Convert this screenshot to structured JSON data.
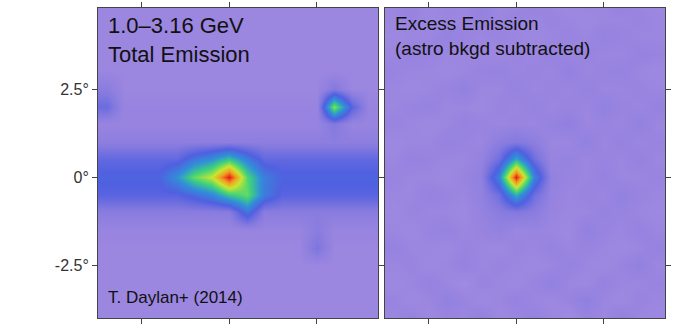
{
  "chart_data": [
    {
      "type": "heatmap",
      "title": [
        "1.0–3.16 GeV",
        "Total Emission"
      ],
      "annotations": [
        "T. Daylan+ (2014)"
      ],
      "x": [
        -3.5,
        -3.0,
        -2.5,
        -2.0,
        -1.5,
        -1.0,
        -0.5,
        0,
        0.5,
        1.0,
        1.5,
        2.0,
        2.5,
        3.0,
        3.5,
        4.0
      ],
      "y": [
        -4.0,
        -3.5,
        -3.0,
        -2.5,
        -2.0,
        -1.5,
        -1.0,
        -0.5,
        0,
        0.5,
        1.0,
        1.5,
        2.0,
        2.5,
        3.0,
        3.5,
        4.0,
        4.5,
        5.0
      ],
      "cells": [
        [
          0.12,
          0.12,
          0.12,
          0.12,
          0.12,
          0.12,
          0.12,
          0.12,
          0.12,
          0.12,
          0.12,
          0.12,
          0.12,
          0.12,
          0.12,
          0.12
        ],
        [
          0.12,
          0.12,
          0.12,
          0.12,
          0.12,
          0.12,
          0.12,
          0.12,
          0.12,
          0.12,
          0.12,
          0.12,
          0.12,
          0.12,
          0.12,
          0.12
        ],
        [
          0.12,
          0.12,
          0.12,
          0.12,
          0.12,
          0.12,
          0.12,
          0.12,
          0.12,
          0.12,
          0.12,
          0.12,
          0.12,
          0.12,
          0.12,
          0.12
        ],
        [
          0.12,
          0.12,
          0.12,
          0.12,
          0.12,
          0.12,
          0.12,
          0.12,
          0.12,
          0.12,
          0.12,
          0.12,
          0.12,
          0.12,
          0.12,
          0.12
        ],
        [
          0.12,
          0.12,
          0.12,
          0.12,
          0.12,
          0.12,
          0.12,
          0.12,
          0.12,
          0.12,
          0.12,
          0.12,
          0.22,
          0.12,
          0.12,
          0.12
        ],
        [
          0.13,
          0.13,
          0.13,
          0.13,
          0.13,
          0.13,
          0.13,
          0.13,
          0.13,
          0.13,
          0.13,
          0.13,
          0.18,
          0.13,
          0.13,
          0.13
        ],
        [
          0.18,
          0.18,
          0.18,
          0.18,
          0.18,
          0.18,
          0.18,
          0.18,
          0.38,
          0.18,
          0.18,
          0.18,
          0.18,
          0.18,
          0.18,
          0.18
        ],
        [
          0.3,
          0.3,
          0.3,
          0.3,
          0.3,
          0.35,
          0.42,
          0.55,
          0.62,
          0.4,
          0.3,
          0.3,
          0.3,
          0.3,
          0.3,
          0.3
        ],
        [
          0.33,
          0.33,
          0.33,
          0.33,
          0.45,
          0.62,
          0.72,
          1.0,
          0.6,
          0.4,
          0.33,
          0.33,
          0.33,
          0.33,
          0.33,
          0.33
        ],
        [
          0.28,
          0.28,
          0.28,
          0.28,
          0.28,
          0.38,
          0.45,
          0.55,
          0.4,
          0.28,
          0.28,
          0.28,
          0.28,
          0.28,
          0.28,
          0.28
        ],
        [
          0.17,
          0.17,
          0.17,
          0.17,
          0.17,
          0.17,
          0.17,
          0.17,
          0.17,
          0.17,
          0.17,
          0.17,
          0.17,
          0.17,
          0.17,
          0.17
        ],
        [
          0.13,
          0.13,
          0.13,
          0.13,
          0.13,
          0.13,
          0.13,
          0.13,
          0.13,
          0.13,
          0.13,
          0.13,
          0.13,
          0.2,
          0.13,
          0.13
        ],
        [
          0.26,
          0.13,
          0.13,
          0.13,
          0.13,
          0.13,
          0.13,
          0.13,
          0.13,
          0.13,
          0.13,
          0.13,
          0.13,
          0.66,
          0.3,
          0.13
        ],
        [
          0.18,
          0.12,
          0.12,
          0.12,
          0.12,
          0.12,
          0.12,
          0.12,
          0.12,
          0.12,
          0.12,
          0.12,
          0.12,
          0.2,
          0.12,
          0.12
        ],
        [
          0.12,
          0.12,
          0.12,
          0.12,
          0.12,
          0.12,
          0.12,
          0.12,
          0.12,
          0.12,
          0.12,
          0.12,
          0.12,
          0.12,
          0.12,
          0.12
        ],
        [
          0.12,
          0.12,
          0.12,
          0.12,
          0.12,
          0.12,
          0.12,
          0.12,
          0.12,
          0.12,
          0.12,
          0.12,
          0.12,
          0.12,
          0.12,
          0.12
        ],
        [
          0.12,
          0.12,
          0.12,
          0.12,
          0.12,
          0.12,
          0.12,
          0.12,
          0.12,
          0.12,
          0.12,
          0.12,
          0.12,
          0.12,
          0.12,
          0.12
        ],
        [
          0.12,
          0.12,
          0.12,
          0.12,
          0.12,
          0.12,
          0.12,
          0.12,
          0.12,
          0.12,
          0.12,
          0.12,
          0.12,
          0.12,
          0.12,
          0.12
        ],
        [
          0.12,
          0.12,
          0.12,
          0.12,
          0.12,
          0.12,
          0.12,
          0.12,
          0.12,
          0.12,
          0.12,
          0.12,
          0.12,
          0.12,
          0.12,
          0.12
        ]
      ],
      "zlim": [
        0,
        1
      ],
      "xlim": [
        -3.75,
        4.25
      ],
      "ylim": [
        -4.0,
        4.8
      ],
      "xticks": [
        -2.5,
        0,
        2.5
      ],
      "yticks": [
        {
          "value": -2.5,
          "label": "-2.5°"
        },
        {
          "value": 0,
          "label": "0°"
        },
        {
          "value": 2.5,
          "label": "2.5°"
        }
      ],
      "tick_labels": "y"
    },
    {
      "type": "heatmap",
      "title": [
        "Excess Emission",
        "(astro bkgd subtracted)"
      ],
      "x": [
        -3.5,
        -3.0,
        -2.5,
        -2.0,
        -1.5,
        -1.0,
        -0.5,
        0,
        0.5,
        1.0,
        1.5,
        2.0,
        2.5,
        3.0,
        3.5,
        4.0
      ],
      "y": [
        -4.0,
        -3.5,
        -3.0,
        -2.5,
        -2.0,
        -1.5,
        -1.0,
        -0.5,
        0,
        0.5,
        1.0,
        1.5,
        2.0,
        2.5,
        3.0,
        3.5,
        4.0,
        4.5,
        5.0
      ],
      "cells": [
        [
          0.12,
          0.14,
          0.11,
          0.13,
          0.12,
          0.15,
          0.11,
          0.12,
          0.14,
          0.12,
          0.1,
          0.13,
          0.12,
          0.15,
          0.12,
          0.11
        ],
        [
          0.13,
          0.11,
          0.12,
          0.15,
          0.13,
          0.11,
          0.12,
          0.14,
          0.12,
          0.11,
          0.13,
          0.16,
          0.12,
          0.11,
          0.13,
          0.12
        ],
        [
          0.11,
          0.12,
          0.14,
          0.12,
          0.1,
          0.13,
          0.12,
          0.11,
          0.13,
          0.15,
          0.12,
          0.11,
          0.14,
          0.12,
          0.12,
          0.13
        ],
        [
          0.12,
          0.13,
          0.11,
          0.12,
          0.14,
          0.12,
          0.13,
          0.12,
          0.11,
          0.12,
          0.14,
          0.12,
          0.11,
          0.13,
          0.15,
          0.12
        ],
        [
          0.14,
          0.12,
          0.12,
          0.11,
          0.13,
          0.12,
          0.11,
          0.13,
          0.12,
          0.14,
          0.12,
          0.13,
          0.12,
          0.11,
          0.12,
          0.14
        ],
        [
          0.12,
          0.11,
          0.13,
          0.14,
          0.12,
          0.13,
          0.15,
          0.12,
          0.13,
          0.12,
          0.11,
          0.15,
          0.13,
          0.12,
          0.14,
          0.12
        ],
        [
          0.11,
          0.13,
          0.12,
          0.12,
          0.11,
          0.14,
          0.18,
          0.2,
          0.18,
          0.13,
          0.12,
          0.12,
          0.14,
          0.13,
          0.12,
          0.11
        ],
        [
          0.12,
          0.12,
          0.14,
          0.13,
          0.12,
          0.15,
          0.25,
          0.5,
          0.25,
          0.14,
          0.12,
          0.13,
          0.12,
          0.15,
          0.13,
          0.12
        ],
        [
          0.13,
          0.12,
          0.12,
          0.11,
          0.13,
          0.16,
          0.42,
          1.0,
          0.42,
          0.15,
          0.13,
          0.12,
          0.14,
          0.12,
          0.12,
          0.13
        ],
        [
          0.12,
          0.14,
          0.13,
          0.12,
          0.12,
          0.14,
          0.25,
          0.5,
          0.25,
          0.13,
          0.14,
          0.12,
          0.13,
          0.12,
          0.14,
          0.12
        ],
        [
          0.11,
          0.12,
          0.12,
          0.14,
          0.13,
          0.12,
          0.17,
          0.2,
          0.17,
          0.12,
          0.12,
          0.15,
          0.12,
          0.14,
          0.12,
          0.13
        ],
        [
          0.13,
          0.12,
          0.11,
          0.12,
          0.14,
          0.13,
          0.12,
          0.13,
          0.12,
          0.14,
          0.16,
          0.12,
          0.13,
          0.12,
          0.15,
          0.12
        ],
        [
          0.12,
          0.13,
          0.14,
          0.12,
          0.12,
          0.11,
          0.13,
          0.12,
          0.14,
          0.12,
          0.13,
          0.12,
          0.15,
          0.13,
          0.12,
          0.14
        ],
        [
          0.12,
          0.11,
          0.12,
          0.13,
          0.15,
          0.12,
          0.12,
          0.14,
          0.12,
          0.13,
          0.12,
          0.14,
          0.12,
          0.12,
          0.13,
          0.12
        ],
        [
          0.13,
          0.12,
          0.12,
          0.11,
          0.12,
          0.13,
          0.14,
          0.12,
          0.13,
          0.12,
          0.15,
          0.12,
          0.13,
          0.14,
          0.12,
          0.11
        ],
        [
          0.12,
          0.14,
          0.13,
          0.12,
          0.12,
          0.12,
          0.11,
          0.13,
          0.12,
          0.14,
          0.12,
          0.13,
          0.12,
          0.12,
          0.14,
          0.13
        ],
        [
          0.11,
          0.12,
          0.12,
          0.14,
          0.13,
          0.12,
          0.13,
          0.12,
          0.11,
          0.12,
          0.13,
          0.12,
          0.14,
          0.13,
          0.12,
          0.12
        ],
        [
          0.12,
          0.13,
          0.11,
          0.12,
          0.12,
          0.14,
          0.12,
          0.13,
          0.12,
          0.13,
          0.12,
          0.11,
          0.12,
          0.12,
          0.13,
          0.12
        ],
        [
          0.12,
          0.14,
          0.11,
          0.13,
          0.12,
          0.15,
          0.11,
          0.12,
          0.14,
          0.12,
          0.1,
          0.13,
          0.12,
          0.15,
          0.12,
          0.11
        ]
      ],
      "zlim": [
        0,
        1
      ],
      "xlim": [
        -3.75,
        4.25
      ],
      "ylim": [
        -4.0,
        4.8
      ],
      "xticks": [
        -2.5,
        0,
        2.5
      ],
      "yticks": [
        -2.5,
        0,
        2.5
      ],
      "tick_labels": false
    }
  ]
}
